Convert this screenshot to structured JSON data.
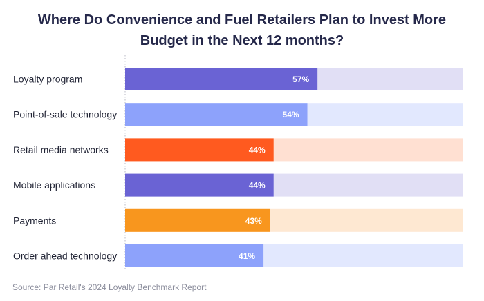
{
  "title_lines": [
    "Where Do Convenience and Fuel Retailers Plan to Invest More",
    "Budget in the Next 12 months?"
  ],
  "source": "Source: Par Retail's 2024 Loyalty Benchmark Report",
  "colors": {
    "title": "#25284a",
    "label": "#1f2233",
    "value_label": "#ffffff",
    "axis_line": "#b8bac6"
  },
  "chart_data": {
    "type": "bar",
    "orientation": "horizontal",
    "categories": [
      "Loyalty program",
      "Point-of-sale technology",
      "Retail media networks",
      "Mobile applications",
      "Payments",
      "Order ahead technology"
    ],
    "values": [
      57,
      54,
      44,
      44,
      43,
      41
    ],
    "value_labels": [
      "57%",
      "54%",
      "44%",
      "44%",
      "43%",
      "41%"
    ],
    "xlim": [
      0,
      100
    ],
    "unit": "%",
    "bar_colors": [
      "#6a63d4",
      "#8da2fb",
      "#ff5a1f",
      "#6a63d4",
      "#f8961e",
      "#8da2fb"
    ],
    "track_colors": [
      "#e1dff5",
      "#e2e8fe",
      "#ffe0d2",
      "#e1dff5",
      "#fee8d2",
      "#e2e8fe"
    ],
    "grid": false,
    "legend": "none"
  }
}
